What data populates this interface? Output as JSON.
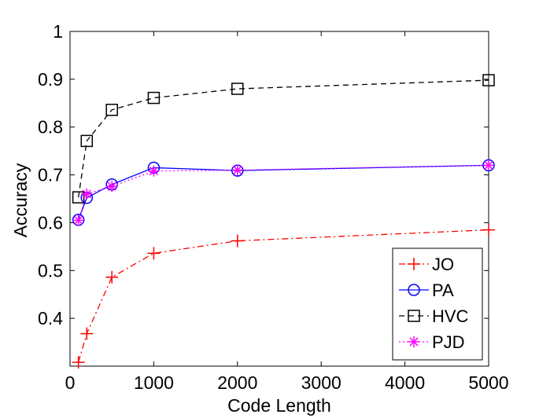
{
  "chart_data": {
    "type": "line",
    "title": "",
    "xlabel": "Code Length",
    "ylabel": "Accuracy",
    "xlim": [
      0,
      5000
    ],
    "ylim": [
      0.3,
      1.0
    ],
    "xticks": [
      0,
      1000,
      2000,
      3000,
      4000,
      5000
    ],
    "yticks": [
      0.4,
      0.5,
      0.6,
      0.7,
      0.8,
      0.9,
      1.0
    ],
    "xtick_labels": [
      "0",
      "1000",
      "2000",
      "3000",
      "4000",
      "5000"
    ],
    "ytick_labels": [
      "0.4",
      "0.5",
      "0.6",
      "0.7",
      "0.8",
      "0.9",
      "1"
    ],
    "grid": false,
    "legend_position": "bottom-right",
    "series": [
      {
        "name": "JO",
        "color": "#ff0000",
        "line_style": "dash-dot",
        "marker": "plus",
        "x": [
          100,
          200,
          500,
          1000,
          2000,
          5000
        ],
        "y": [
          0.308,
          0.368,
          0.486,
          0.536,
          0.562,
          0.585
        ]
      },
      {
        "name": "PA",
        "color": "#0000ff",
        "line_style": "solid",
        "marker": "circle",
        "x": [
          100,
          200,
          500,
          1000,
          2000,
          5000
        ],
        "y": [
          0.606,
          0.652,
          0.68,
          0.715,
          0.709,
          0.72
        ]
      },
      {
        "name": "HVC",
        "color": "#000000",
        "line_style": "dashed",
        "marker": "square",
        "x": [
          100,
          200,
          500,
          1000,
          2000,
          5000
        ],
        "y": [
          0.653,
          0.771,
          0.836,
          0.861,
          0.88,
          0.898
        ]
      },
      {
        "name": "PJD",
        "color": "#ff00ff",
        "line_style": "dotted",
        "marker": "star",
        "x": [
          100,
          200,
          500,
          1000,
          2000,
          5000
        ],
        "y": [
          0.605,
          0.66,
          0.676,
          0.708,
          0.71,
          0.72
        ]
      }
    ]
  }
}
